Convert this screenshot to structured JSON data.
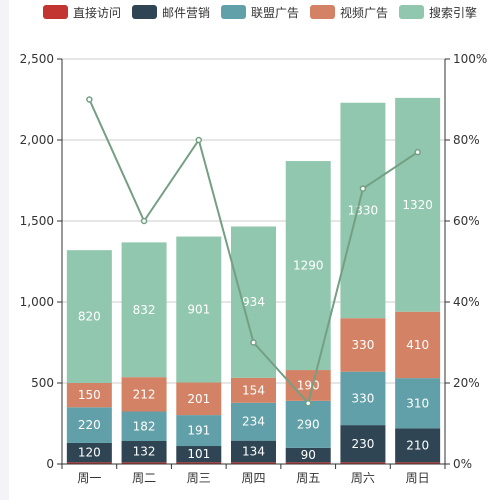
{
  "legend": [
    {
      "name": "直接访问",
      "color": "#c23531"
    },
    {
      "name": "邮件营销",
      "color": "#2f4554"
    },
    {
      "name": "联盟广告",
      "color": "#61a0a8"
    },
    {
      "name": "视频广告",
      "color": "#d48265"
    },
    {
      "name": "搜索引擎",
      "color": "#91c7ae"
    }
  ],
  "chart_data": {
    "type": "bar",
    "stacked": true,
    "categories": [
      "周一",
      "周二",
      "周三",
      "周四",
      "周五",
      "周六",
      "周日"
    ],
    "series": [
      {
        "name": "直接访问",
        "color": "#c23531",
        "values": [
          10,
          10,
          10,
          10,
          10,
          10,
          10
        ]
      },
      {
        "name": "邮件营销",
        "color": "#2f4554",
        "values": [
          120,
          132,
          101,
          134,
          90,
          230,
          210
        ]
      },
      {
        "name": "联盟广告",
        "color": "#61a0a8",
        "values": [
          220,
          182,
          191,
          234,
          290,
          330,
          310
        ]
      },
      {
        "name": "视频广告",
        "color": "#d48265",
        "values": [
          150,
          212,
          201,
          154,
          190,
          330,
          410
        ]
      },
      {
        "name": "搜索引擎",
        "color": "#91c7ae",
        "values": [
          820,
          832,
          901,
          934,
          1290,
          1330,
          1320
        ]
      },
      {
        "type": "line",
        "axis": "right",
        "color": "#749f83",
        "values": [
          90,
          60,
          80,
          30,
          15,
          68,
          77
        ]
      }
    ],
    "ylim": [
      0,
      2500
    ],
    "y_ticks": [
      "0",
      "500",
      "1,000",
      "1,500",
      "2,000",
      "2,500"
    ],
    "y2lim": [
      0,
      100
    ],
    "y2_ticks": [
      "0%",
      "20%",
      "40%",
      "60%",
      "80%",
      "100%"
    ],
    "grid": true,
    "legend_position": "top-center"
  }
}
